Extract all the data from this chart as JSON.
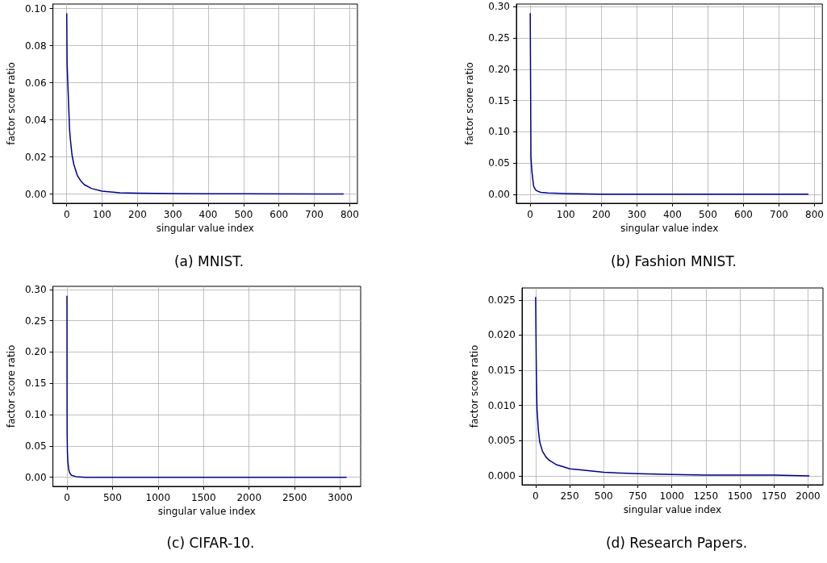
{
  "chart_data": [
    {
      "type": "line",
      "title": "(a) MNIST.",
      "xlabel": "singular value index",
      "ylabel": "factor score ratio",
      "grid": true,
      "marker": "none",
      "xlim": [
        -39,
        822
      ],
      "xticks": [
        0,
        100,
        200,
        300,
        400,
        500,
        600,
        700,
        800
      ],
      "ylim": [
        -0.005,
        0.1025
      ],
      "yticks": [
        {
          "value": 0,
          "label": "0.00"
        },
        {
          "value": 0.02,
          "label": "0.02"
        },
        {
          "value": 0.04,
          "label": "0.04"
        },
        {
          "value": 0.06,
          "label": "0.06"
        },
        {
          "value": 0.08,
          "label": "0.08"
        },
        {
          "value": 0.1,
          "label": "0.10"
        }
      ],
      "series": [
        {
          "color": "#00008b",
          "x": [
            0,
            1,
            3,
            5,
            8,
            10,
            15,
            20,
            30,
            40,
            50,
            70,
            100,
            150,
            200,
            300,
            500,
            700,
            783
          ],
          "values": [
            0.0975,
            0.071,
            0.06,
            0.05,
            0.035,
            0.03,
            0.021,
            0.016,
            0.01,
            0.007,
            0.005,
            0.003,
            0.0015,
            0.0007,
            0.0004,
            0.0002,
            0.0001,
            0,
            0
          ]
        }
      ]
    },
    {
      "type": "line",
      "title": "(b) Fashion MNIST.",
      "xlabel": "singular value index",
      "ylabel": "factor score ratio",
      "grid": true,
      "marker": "none",
      "xlim": [
        -39,
        822
      ],
      "xticks": [
        0,
        100,
        200,
        300,
        400,
        500,
        600,
        700,
        800
      ],
      "ylim": [
        -0.0145,
        0.3045
      ],
      "yticks": [
        {
          "value": 0,
          "label": "0.00"
        },
        {
          "value": 0.05,
          "label": "0.05"
        },
        {
          "value": 0.1,
          "label": "0.10"
        },
        {
          "value": 0.15,
          "label": "0.15"
        },
        {
          "value": 0.2,
          "label": "0.20"
        },
        {
          "value": 0.25,
          "label": "0.25"
        },
        {
          "value": 0.3,
          "label": "0.30"
        }
      ],
      "series": [
        {
          "color": "#00008b",
          "x": [
            0,
            1,
            2,
            3,
            5,
            8,
            10,
            15,
            20,
            30,
            50,
            100,
            200,
            400,
            783
          ],
          "values": [
            0.29,
            0.177,
            0.06,
            0.05,
            0.035,
            0.02,
            0.012,
            0.007,
            0.005,
            0.003,
            0.002,
            0.001,
            0,
            0,
            0
          ]
        }
      ]
    },
    {
      "type": "line",
      "title": "(c) CIFAR-10.",
      "xlabel": "singular value index",
      "ylabel": "factor score ratio",
      "grid": true,
      "marker": "none",
      "xlim": [
        -154,
        3225
      ],
      "xticks": [
        0,
        500,
        1000,
        1500,
        2000,
        2500,
        3000
      ],
      "ylim": [
        -0.0146,
        0.305
      ],
      "yticks": [
        {
          "value": 0,
          "label": "0.00"
        },
        {
          "value": 0.05,
          "label": "0.05"
        },
        {
          "value": 0.1,
          "label": "0.10"
        },
        {
          "value": 0.15,
          "label": "0.15"
        },
        {
          "value": 0.2,
          "label": "0.20"
        },
        {
          "value": 0.25,
          "label": "0.25"
        },
        {
          "value": 0.3,
          "label": "0.30"
        }
      ],
      "series": [
        {
          "color": "#00008b",
          "x": [
            0,
            1,
            2,
            5,
            10,
            20,
            30,
            50,
            100,
            200,
            500,
            1000,
            3071
          ],
          "values": [
            0.29,
            0.11,
            0.07,
            0.04,
            0.025,
            0.012,
            0.007,
            0.003,
            0.001,
            0,
            0,
            0,
            0
          ]
        }
      ]
    },
    {
      "type": "line",
      "title": "(d) Research Papers.",
      "xlabel": "singular value index",
      "ylabel": "factor score ratio",
      "grid": true,
      "marker": "none",
      "xlim": [
        -100,
        2110
      ],
      "xticks": [
        0,
        250,
        500,
        750,
        1000,
        1250,
        1500,
        1750,
        2000
      ],
      "ylim": [
        -0.00127,
        0.0267
      ],
      "yticks": [
        {
          "value": 0,
          "label": "0.000"
        },
        {
          "value": 0.005,
          "label": "0.005"
        },
        {
          "value": 0.01,
          "label": "0.010"
        },
        {
          "value": 0.015,
          "label": "0.015"
        },
        {
          "value": 0.02,
          "label": "0.020"
        },
        {
          "value": 0.025,
          "label": "0.025"
        }
      ],
      "series": [
        {
          "color": "#00008b",
          "x": [
            0,
            5,
            10,
            20,
            30,
            50,
            75,
            100,
            150,
            200,
            250,
            300,
            400,
            500,
            750,
            1000,
            1250,
            1500,
            1750,
            2010
          ],
          "values": [
            0.0254,
            0.015,
            0.0095,
            0.0065,
            0.0048,
            0.0035,
            0.0027,
            0.0022,
            0.0016,
            0.0013,
            0.001,
            0.0009,
            0.0007,
            0.0005,
            0.0003,
            0.0002,
            0.0001,
            0.0001,
            0.0001,
            0
          ]
        }
      ]
    }
  ]
}
